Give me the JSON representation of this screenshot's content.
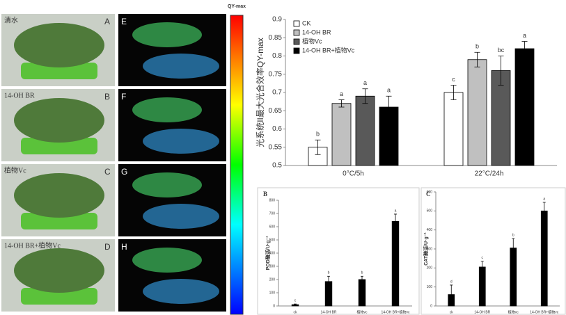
{
  "figure": {
    "colorbar_title": "QY-max",
    "panels": [
      {
        "label": "清水",
        "letter": "A",
        "fluor_letter": "E"
      },
      {
        "label": "14-OH BR",
        "letter": "B",
        "fluor_letter": "F"
      },
      {
        "label": "植物Vc",
        "letter": "C",
        "fluor_letter": "G"
      },
      {
        "label": "14-OH BR+植物Vc",
        "letter": "D",
        "fluor_letter": "H"
      }
    ]
  },
  "chart_data": [
    {
      "type": "bar",
      "y_label": "光系统II最大光合效率QY-max",
      "categories": [
        "0°C/5h",
        "22°C/24h"
      ],
      "ylim": [
        0.5,
        0.9
      ],
      "yticks": [
        0.5,
        0.55,
        0.6,
        0.65,
        0.7,
        0.75,
        0.8,
        0.85,
        0.9
      ],
      "legend": "top-left",
      "series": [
        {
          "name": "CK",
          "color": "#ffffff",
          "values": [
            0.55,
            0.7
          ],
          "errors": [
            0.02,
            0.02
          ],
          "letters": [
            "b",
            "c"
          ]
        },
        {
          "name": "14-OH BR",
          "color": "#c0c0c0",
          "values": [
            0.67,
            0.79
          ],
          "errors": [
            0.01,
            0.02
          ],
          "letters": [
            "a",
            "b"
          ]
        },
        {
          "name": "植物Vc",
          "color": "#595959",
          "values": [
            0.69,
            0.76
          ],
          "errors": [
            0.02,
            0.04
          ],
          "letters": [
            "a",
            "bc"
          ]
        },
        {
          "name": "14-OH BR+植物Vc",
          "color": "#000000",
          "values": [
            0.66,
            0.82
          ],
          "errors": [
            0.03,
            0.02
          ],
          "letters": [
            "a",
            "a"
          ]
        }
      ]
    },
    {
      "type": "bar",
      "panel": "B",
      "y_label": "POD酶活/U·g⁻¹",
      "categories": [
        "ck",
        "14-OH BR",
        "植物vc",
        "14-OH BR+植物vc"
      ],
      "ylim": [
        0,
        800
      ],
      "yticks": [
        0,
        100,
        200,
        300,
        400,
        500,
        600,
        700,
        800
      ],
      "color": "#000000",
      "values": [
        10,
        185,
        200,
        640
      ],
      "errors": [
        5,
        40,
        25,
        55
      ],
      "letters": [
        "c",
        "b",
        "b",
        "a"
      ]
    },
    {
      "type": "bar",
      "panel": "C",
      "y_label": "CAT酶活/U·g⁻¹",
      "categories": [
        "ck",
        "14-OH BR",
        "植物vc",
        "14-OH BR+植物vc"
      ],
      "ylim": [
        0,
        600
      ],
      "yticks": [
        0,
        100,
        200,
        300,
        400,
        500,
        600
      ],
      "color": "#000000",
      "values": [
        60,
        205,
        305,
        500
      ],
      "errors": [
        50,
        30,
        50,
        45
      ],
      "letters": [
        "d",
        "c",
        "b",
        "a"
      ]
    }
  ]
}
